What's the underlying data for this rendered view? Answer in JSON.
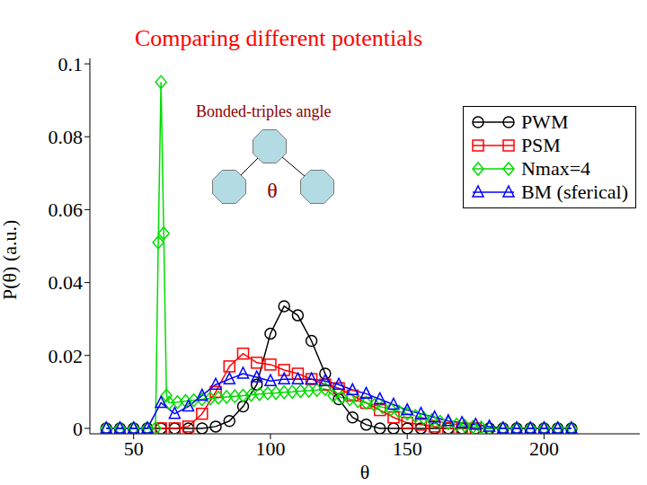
{
  "chart_data": {
    "type": "line",
    "title": "Comparing different potentials",
    "annotations": [
      "Bonded-triples angle",
      "θ"
    ],
    "x_label": "θ",
    "y_label": "P(θ) (a.u.)",
    "xlim": [
      34,
      235
    ],
    "xticks": [
      50,
      100,
      150,
      200
    ],
    "ylim": [
      -0.0015,
      0.1015
    ],
    "yticks": [
      0,
      0.02,
      0.04,
      0.06,
      0.08,
      0.1
    ],
    "legend": "upper right",
    "series": [
      {
        "name": "PWM",
        "color": "#000000",
        "marker": "circle",
        "x": [
          40,
          45,
          50,
          55,
          60,
          65,
          70,
          75,
          80,
          85,
          90,
          95,
          100,
          105,
          110,
          115,
          120,
          125,
          130,
          135,
          140,
          145,
          150,
          155,
          160,
          165,
          170,
          175,
          180,
          185,
          190,
          195,
          200,
          205,
          210
        ],
        "values": [
          0,
          0,
          0,
          0,
          0,
          0,
          0,
          0,
          0.0005,
          0.002,
          0.006,
          0.012,
          0.026,
          0.0335,
          0.031,
          0.024,
          0.015,
          0.008,
          0.003,
          0.001,
          0,
          0,
          0,
          0,
          0,
          0,
          0,
          0,
          0,
          0,
          0,
          0,
          0,
          0,
          0
        ]
      },
      {
        "name": "PSM",
        "color": "#ff0000",
        "marker": "square",
        "x": [
          60,
          65,
          70,
          75,
          80,
          85,
          90,
          95,
          100,
          105,
          110,
          115,
          120,
          125,
          130,
          135,
          140,
          145,
          150,
          155,
          160,
          165,
          170,
          175
        ],
        "values": [
          0,
          0,
          0.0005,
          0.004,
          0.01,
          0.017,
          0.0205,
          0.018,
          0.0175,
          0.016,
          0.015,
          0.0135,
          0.012,
          0.011,
          0.009,
          0.007,
          0.005,
          0.003,
          0.0015,
          0.001,
          0.0005,
          0,
          0,
          0
        ]
      },
      {
        "name": "Nmax=4",
        "color": "#00dd00",
        "marker": "diamond",
        "x": [
          40,
          45,
          50,
          55,
          58,
          59,
          60,
          61,
          62,
          63,
          66,
          69,
          72,
          75,
          78,
          81,
          84,
          87,
          90,
          93,
          96,
          99,
          102,
          105,
          108,
          111,
          114,
          117,
          120,
          123,
          126,
          129,
          132,
          135,
          138,
          141,
          144,
          147,
          150,
          153,
          156,
          159,
          162,
          165,
          168,
          171,
          174,
          177,
          180,
          185,
          190,
          195,
          200,
          205,
          210
        ],
        "values": [
          0,
          0,
          0,
          0,
          0,
          0.051,
          0.095,
          0.0535,
          0.009,
          0.007,
          0.0072,
          0.0075,
          0.0077,
          0.008,
          0.0082,
          0.0084,
          0.0086,
          0.0088,
          0.009,
          0.0092,
          0.0094,
          0.0096,
          0.0097,
          0.0099,
          0.01,
          0.0102,
          0.0103,
          0.0105,
          0.0108,
          0.009,
          0.0085,
          0.008,
          0.0075,
          0.007,
          0.0064,
          0.0058,
          0.0052,
          0.0046,
          0.004,
          0.0034,
          0.0028,
          0.0023,
          0.0018,
          0.0014,
          0.001,
          0.0007,
          0.0004,
          0.0002,
          0,
          0,
          0,
          0,
          0,
          0,
          0
        ]
      },
      {
        "name": "BM (sferical)",
        "color": "#0000ff",
        "marker": "triangle",
        "x": [
          40,
          45,
          50,
          55,
          60,
          65,
          70,
          75,
          80,
          85,
          90,
          95,
          100,
          105,
          110,
          115,
          120,
          125,
          130,
          135,
          140,
          145,
          150,
          155,
          160,
          165,
          170,
          175,
          180,
          185,
          190,
          195,
          200,
          205,
          210
        ],
        "values": [
          0,
          0,
          0,
          0,
          0.007,
          0.004,
          0.006,
          0.009,
          0.012,
          0.0135,
          0.015,
          0.014,
          0.013,
          0.0135,
          0.0135,
          0.0135,
          0.013,
          0.012,
          0.0105,
          0.0095,
          0.008,
          0.0065,
          0.005,
          0.004,
          0.003,
          0.002,
          0.0015,
          0.001,
          0.0005,
          0,
          0,
          0,
          0,
          0,
          0
        ]
      }
    ]
  }
}
